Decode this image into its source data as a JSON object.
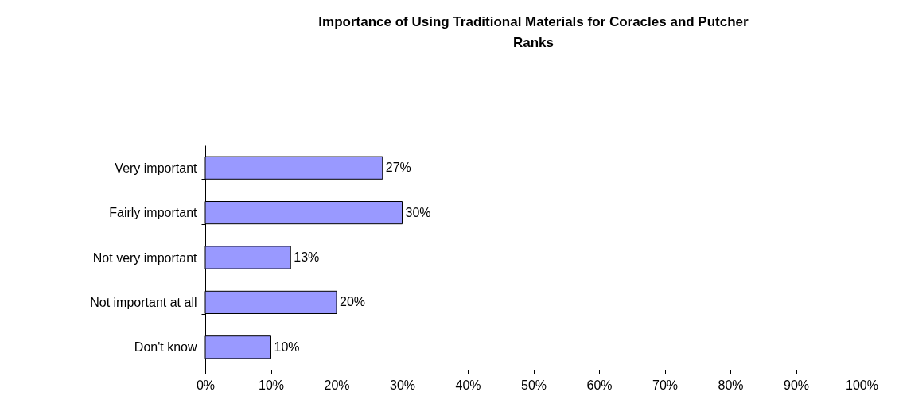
{
  "chart_data": {
    "type": "bar",
    "orientation": "horizontal",
    "title": "Importance of Using Traditional Materials for Coracles and Putcher Ranks",
    "categories": [
      "Very important",
      "Fairly important",
      "Not very important",
      "Not important at all",
      "Don't know"
    ],
    "values": [
      27,
      30,
      13,
      20,
      10
    ],
    "value_labels": [
      "27%",
      "30%",
      "13%",
      "20%",
      "10%"
    ],
    "color": "#9999ff",
    "xlim": [
      0,
      100
    ],
    "xticks": [
      {
        "value": 0,
        "label": "0%"
      },
      {
        "value": 10,
        "label": "10%"
      },
      {
        "value": 20,
        "label": "20%"
      },
      {
        "value": 30,
        "label": "30%"
      },
      {
        "value": 40,
        "label": "40%"
      },
      {
        "value": 50,
        "label": "50%"
      },
      {
        "value": 60,
        "label": "60%"
      },
      {
        "value": 70,
        "label": "70%"
      },
      {
        "value": 80,
        "label": "80%"
      },
      {
        "value": 90,
        "label": "90%"
      },
      {
        "value": 100,
        "label": "100%"
      }
    ],
    "grid": false
  }
}
